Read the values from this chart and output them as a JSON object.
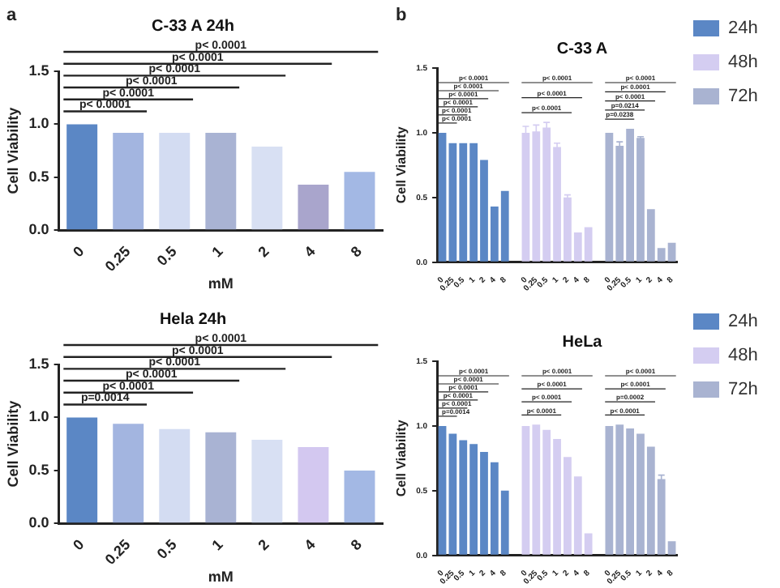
{
  "chart_data": [
    {
      "type": "bar",
      "title": "C-33 A 24h",
      "xlabel": "mM",
      "ylabel": "Cell Viability",
      "categories": [
        "0",
        "0.25",
        "0.5",
        "1",
        "2",
        "4",
        "8"
      ],
      "values": [
        1.0,
        0.92,
        0.92,
        0.92,
        0.79,
        0.43,
        0.55
      ],
      "colors": [
        "#5b87c5",
        "#a3b5e0",
        "#d3dcf2",
        "#a9b3d3",
        "#d8e0f3",
        "#a9a5cc",
        "#a3b8e4"
      ],
      "ylim": [
        0,
        1.5
      ],
      "yticks": [
        {
          "value": 0,
          "label": "0.0"
        },
        {
          "value": 0.5,
          "label": "0.5"
        },
        {
          "value": 1,
          "label": "1.0"
        },
        {
          "value": 1.5,
          "label": "1.5"
        }
      ],
      "grid": false,
      "annotations": [
        "a",
        "p< 0.0001",
        "p< 0.0001",
        "p< 0.0001",
        "p< 0.0001",
        "p< 0.0001",
        "p< 0.0001"
      ]
    },
    {
      "type": "bar",
      "title": "Hela 24h",
      "xlabel": "mM",
      "ylabel": "Cell Viability",
      "categories": [
        "0",
        "0.25",
        "0.5",
        "1",
        "2",
        "4",
        "8"
      ],
      "values": [
        1.0,
        0.94,
        0.89,
        0.86,
        0.79,
        0.72,
        0.5
      ],
      "colors": [
        "#5b87c5",
        "#a3b5e0",
        "#d3dcf2",
        "#a9b3d3",
        "#d8e0f3",
        "#d3c8f0",
        "#a3b8e4"
      ],
      "ylim": [
        0,
        1.5
      ],
      "yticks": [
        {
          "value": 0,
          "label": "0.0"
        },
        {
          "value": 0.5,
          "label": "0.5"
        },
        {
          "value": 1,
          "label": "1.0"
        },
        {
          "value": 1.5,
          "label": "1.5"
        }
      ],
      "grid": false,
      "annotations": [
        "p< 0.0001",
        "p< 0.0001",
        "p< 0.0001",
        "p< 0.0001",
        "p< 0.0001",
        "p=0.0014"
      ]
    },
    {
      "type": "bar",
      "title": "C-33 A",
      "ylabel": "Cell Viability",
      "categories": [
        "0",
        "0.25",
        "0.5",
        "1",
        "2",
        "4",
        "8",
        null,
        "0",
        "0.25",
        "0.5",
        "1",
        "2",
        "4",
        "8",
        null,
        "0",
        "0.25",
        "0.5",
        "1",
        "2",
        "4",
        "8"
      ],
      "series": [
        {
          "name": "24h",
          "color": "#5b87c5",
          "values": [
            1.0,
            0.92,
            0.92,
            0.92,
            0.79,
            0.43,
            0.55,
            null,
            null,
            null,
            null,
            null,
            null,
            null,
            null,
            null,
            null,
            null,
            null,
            null,
            null,
            null,
            null
          ]
        },
        {
          "name": "48h",
          "color": "#d4cdf1",
          "values": [
            null,
            null,
            null,
            null,
            null,
            null,
            null,
            null,
            1.0,
            1.01,
            1.04,
            0.89,
            0.5,
            0.23,
            0.27,
            null,
            null,
            null,
            null,
            null,
            null,
            null,
            null
          ],
          "errors": [
            null,
            null,
            null,
            null,
            null,
            null,
            null,
            null,
            0.05,
            0.05,
            0.04,
            0.03,
            0.02,
            null,
            null,
            null,
            null,
            null,
            null,
            null,
            null,
            null,
            null
          ]
        },
        {
          "name": "72h",
          "color": "#a9b3d1",
          "values": [
            null,
            null,
            null,
            null,
            null,
            null,
            null,
            null,
            null,
            null,
            null,
            null,
            null,
            null,
            null,
            null,
            1.0,
            0.9,
            1.03,
            0.96,
            0.41,
            0.11,
            0.15
          ],
          "errors": [
            null,
            null,
            null,
            null,
            null,
            null,
            null,
            null,
            null,
            null,
            null,
            null,
            null,
            null,
            null,
            null,
            null,
            0.03,
            null,
            0.01,
            null,
            null,
            null
          ]
        }
      ],
      "ylim": [
        0,
        1.5
      ],
      "yticks": [
        {
          "value": 0,
          "label": "0.0"
        },
        {
          "value": 0.5,
          "label": "0.5"
        },
        {
          "value": 1,
          "label": "1.0"
        },
        {
          "value": 1.5,
          "label": "1.5"
        }
      ],
      "grid": false,
      "legend": "right",
      "annotations": [
        "b",
        "p< 0.0001",
        "p< 0.0001",
        "p< 0.0001",
        "p< 0.0001",
        "p< 0.0001",
        "p< 0.0001",
        "p< 0.0001",
        "p< 0.0001",
        "p< 0.0001",
        "p< 0.0001",
        "p< 0.0001",
        "p< 0.0001",
        "p=0.0214",
        "p=0.0238"
      ]
    },
    {
      "type": "bar",
      "title": "HeLa",
      "ylabel": "Cell Viability",
      "categories": [
        "0",
        "0.25",
        "0.5",
        "1",
        "2",
        "4",
        "8",
        null,
        "0",
        "0.25",
        "0.5",
        "1",
        "2",
        "4",
        "8",
        null,
        "0",
        "0.25",
        "0.5",
        "1",
        "2",
        "4",
        "8"
      ],
      "series": [
        {
          "name": "24h",
          "color": "#5b87c5",
          "values": [
            1.0,
            0.94,
            0.89,
            0.86,
            0.8,
            0.72,
            0.5,
            null,
            null,
            null,
            null,
            null,
            null,
            null,
            null,
            null,
            null,
            null,
            null,
            null,
            null,
            null,
            null
          ]
        },
        {
          "name": "48h",
          "color": "#d4cdf1",
          "values": [
            null,
            null,
            null,
            null,
            null,
            null,
            null,
            null,
            1.0,
            1.01,
            0.97,
            0.9,
            0.76,
            0.61,
            0.17,
            null,
            null,
            null,
            null,
            null,
            null,
            null,
            null
          ]
        },
        {
          "name": "72h",
          "color": "#a9b3d1",
          "values": [
            null,
            null,
            null,
            null,
            null,
            null,
            null,
            null,
            null,
            null,
            null,
            null,
            null,
            null,
            null,
            null,
            1.0,
            1.01,
            0.98,
            0.94,
            0.84,
            0.59,
            0.11
          ],
          "errors": [
            null,
            null,
            null,
            null,
            null,
            null,
            null,
            null,
            null,
            null,
            null,
            null,
            null,
            null,
            null,
            null,
            null,
            null,
            null,
            null,
            null,
            0.03,
            null
          ]
        }
      ],
      "ylim": [
        0,
        1.5
      ],
      "yticks": [
        {
          "value": 0,
          "label": "0.0"
        },
        {
          "value": 0.5,
          "label": "0.5"
        },
        {
          "value": 1,
          "label": "1.0"
        },
        {
          "value": 1.5,
          "label": "1.5"
        }
      ],
      "grid": false,
      "legend": "right",
      "annotations": [
        "p< 0.0001",
        "p< 0.0001",
        "p< 0.0001",
        "p< 0.0001",
        "p< 0.0001",
        "p=0.0014",
        "p< 0.0001",
        "p< 0.0001",
        "p< 0.0001",
        "p< 0.0001",
        "p< 0.0001",
        "p< 0.0001",
        "p=0.0002",
        "p< 0.0001"
      ]
    }
  ]
}
